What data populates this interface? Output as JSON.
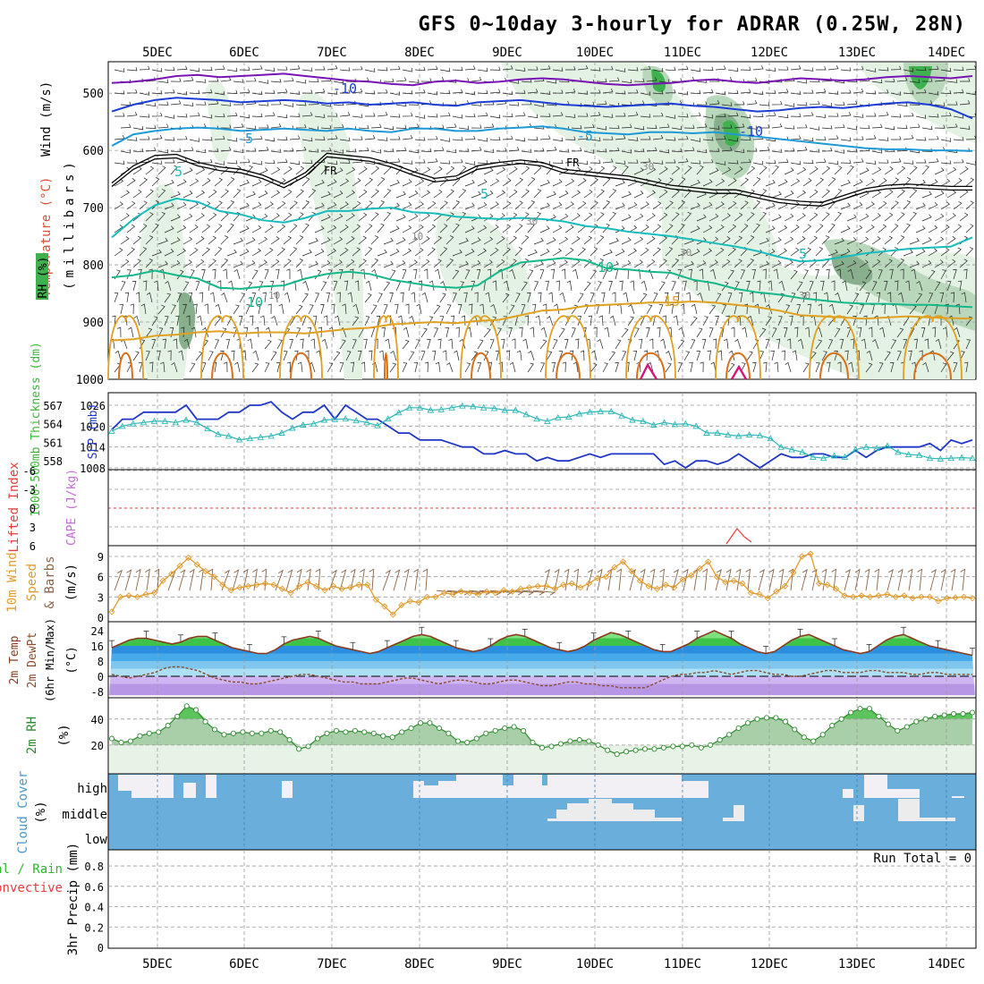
{
  "title": "GFS 0~10day 3-hourly for ADRAR (0.25W, 28N)",
  "colors": {
    "frame": "#000000",
    "grid": "#9a9a9a",
    "rh_light": "#e4f2e4",
    "rh_mid": "#b9d8bb",
    "rh_dark": "#89b08c",
    "rh_green": "#3fb24f",
    "temp_purple": "#7a13b5",
    "temp_blue": "#1c3ed6",
    "temp_sky": "#1e9ad6",
    "temp_teal": "#18bcbc",
    "temp_green": "#14b88a",
    "temp_orange": "#e0a020",
    "temp_dark_orange": "#d8701a",
    "freezing": "#000000",
    "slp": "#1f37c7",
    "thickness": "#2eb7b7",
    "wind_speed": "#e39a2c",
    "wind_barb": "#8a6246",
    "lifted_index": "#e63c3c",
    "cape": "#c26bd6",
    "temp_line": "#8b3a1e",
    "dewpoint": "#8b4a2a",
    "rh_line": "#2e8b2e",
    "cloud": "#6aaedb",
    "precip_total": "#2db82d",
    "precip_conv": "#e63c3c"
  },
  "chart_data": [
    {
      "panel": "upper-air",
      "type": "heatmap",
      "x_labels": [
        "5DEC",
        "6DEC",
        "7DEC",
        "8DEC",
        "9DEC",
        "10DEC",
        "11DEC",
        "12DEC",
        "13DEC",
        "14DEC"
      ],
      "y_ticks": [
        "500",
        "600",
        "700",
        "800",
        "900",
        "1000"
      ],
      "y_label_top": "Wind (m/s)",
      "y_label_temp": "Temperature (°C)",
      "y_label_rh": "RH (%)",
      "y_label_p": "(millibars)",
      "contour_labels": {
        "t_minus10": "-10",
        "t_minus5": "-5",
        "t_fr": "FR",
        "t_5": "5",
        "t_10": "10",
        "t_15": "15",
        "rh_30": "30",
        "rh_10": "10"
      },
      "temp_contours_mb": {
        "minus10": [
          482,
          480,
          476,
          470,
          468,
          472,
          470,
          468,
          466,
          470,
          474,
          478,
          480,
          484,
          486,
          480,
          478,
          482,
          480,
          476,
          474,
          476,
          480,
          484,
          486,
          484,
          482,
          478,
          476,
          480,
          482,
          478,
          474,
          476,
          478,
          476,
          472,
          470,
          472,
          474,
          470
        ],
        "minus5": [
          532,
          520,
          512,
          508,
          510,
          512,
          516,
          514,
          512,
          514,
          518,
          516,
          520,
          518,
          516,
          520,
          522,
          516,
          514,
          512,
          516,
          520,
          522,
          524,
          522,
          520,
          518,
          522,
          524,
          528,
          532,
          530,
          526,
          524,
          526,
          522,
          518,
          516,
          520,
          528,
          544
        ],
        "minus5b": [
          592,
          572,
          566,
          562,
          560,
          562,
          566,
          564,
          562,
          564,
          566,
          562,
          566,
          568,
          562,
          562,
          566,
          566,
          562,
          560,
          558,
          562,
          568,
          570,
          572,
          568,
          568,
          570,
          568,
          572,
          576,
          580,
          584,
          588,
          592,
          596,
          598,
          598,
          600,
          600,
          601
        ],
        "fr": [
          660,
          630,
          612,
          610,
          624,
          632,
          636,
          646,
          662,
          642,
          608,
          612,
          616,
          626,
          640,
          652,
          648,
          630,
          624,
          620,
          624,
          636,
          640,
          644,
          648,
          656,
          664,
          668,
          672,
          672,
          680,
          688,
          692,
          694,
          682,
          670,
          664,
          662,
          664,
          666,
          666
        ],
        "five": [
          752,
          720,
          696,
          684,
          690,
          706,
          712,
          722,
          726,
          718,
          706,
          706,
          702,
          700,
          708,
          710,
          716,
          718,
          720,
          718,
          720,
          724,
          732,
          736,
          742,
          746,
          750,
          756,
          762,
          768,
          776,
          786,
          794,
          792,
          786,
          780,
          776,
          772,
          770,
          768,
          752
        ],
        "ten": [
          822,
          818,
          810,
          818,
          824,
          840,
          842,
          838,
          836,
          824,
          816,
          812,
          816,
          826,
          832,
          838,
          840,
          836,
          812,
          796,
          792,
          788,
          792,
          806,
          808,
          812,
          814,
          826,
          832,
          842,
          848,
          852,
          858,
          862,
          866,
          868,
          868,
          870,
          870,
          872,
          874
        ],
        "fifteen": [
          932,
          930,
          924,
          922,
          918,
          916,
          920,
          918,
          918,
          920,
          916,
          912,
          910,
          904,
          902,
          900,
          902,
          898,
          896,
          888,
          880,
          878,
          872,
          870,
          868,
          866,
          866,
          864,
          866,
          870,
          874,
          880,
          888,
          890,
          892,
          894,
          892,
          890,
          892,
          893,
          894
        ]
      }
    },
    {
      "panel": "slp-thickness",
      "type": "line",
      "y_label_left": "1000-500mb Thickness (dm)",
      "y_label_right": "SLP (mb)",
      "left_ticks": [
        "567",
        "564",
        "561",
        "558"
      ],
      "right_ticks": [
        "1026",
        "1020",
        "1014",
        "1008"
      ],
      "series": [
        {
          "name": "SLP",
          "values": [
            1019,
            1022,
            1022,
            1024,
            1024,
            1024,
            1024,
            1026,
            1022,
            1022,
            1022,
            1024,
            1024,
            1026,
            1026,
            1027,
            1024,
            1022,
            1024,
            1024,
            1026,
            1022,
            1026,
            1024,
            1022,
            1022,
            1020,
            1018,
            1018,
            1016,
            1016,
            1016,
            1015,
            1014,
            1014,
            1012,
            1012,
            1013,
            1012,
            1012,
            1010,
            1011,
            1010,
            1010,
            1011,
            1012,
            1011,
            1012,
            1012,
            1012,
            1012,
            1012,
            1009,
            1010,
            1008,
            1010,
            1010,
            1009,
            1010,
            1012,
            1010,
            1008,
            1010,
            1012,
            1011,
            1011,
            1012,
            1012,
            1011,
            1011,
            1013,
            1011,
            1013,
            1014,
            1014,
            1014,
            1014,
            1015,
            1013,
            1016,
            1015,
            1016
          ]
        },
        {
          "name": "Thickness",
          "values": [
            562.8,
            563.6,
            564.0,
            564.2,
            564.4,
            564.4,
            564.2,
            564.6,
            564.2,
            563.2,
            562.3,
            562.0,
            561.4,
            561.6,
            561.8,
            562.0,
            562.5,
            563.3,
            563.8,
            564.0,
            564.6,
            564.7,
            564.8,
            564.5,
            564.2,
            563.7,
            564.8,
            565.8,
            566.6,
            566.6,
            566.2,
            566.3,
            566.6,
            566.9,
            566.8,
            566.6,
            566.5,
            566.2,
            566.2,
            565.5,
            564.8,
            564.4,
            565.0,
            565.1,
            565.6,
            565.9,
            566.0,
            566.0,
            565.3,
            564.6,
            564.4,
            563.8,
            564.2,
            563.9,
            564.0,
            563.6,
            562.5,
            562.5,
            562.2,
            562.0,
            562.2,
            562.1,
            561.6,
            560.2,
            559.8,
            559.4,
            558.6,
            558.4,
            558.8,
            558.6,
            559.8,
            560.2,
            560.0,
            560.4,
            559.4,
            559.0,
            558.9,
            558.4,
            558.3,
            558.4,
            558.5,
            558.4
          ]
        }
      ]
    },
    {
      "panel": "lifted-index",
      "type": "line",
      "y_label_left": "Lifted Index",
      "y_label_right": "CAPE (J/kg)",
      "left_ticks": [
        "-6",
        "-3",
        "0",
        "3",
        "6"
      ]
    },
    {
      "panel": "wind-10m",
      "type": "line",
      "y_label_left": "10m Wind",
      "y_label_mid1": "Speed",
      "y_label_mid2": "& Barbs",
      "y_label_right": "(m/s)",
      "left_ticks": [
        "9",
        "6",
        "3",
        "0"
      ],
      "series": [
        {
          "name": "Speed",
          "values": [
            0.8,
            3.0,
            3.2,
            3.0,
            3.4,
            3.6,
            5.4,
            6.4,
            7.6,
            8.8,
            7.8,
            6.8,
            6.0,
            4.8,
            4.0,
            4.4,
            4.6,
            4.8,
            5.0,
            4.8,
            4.2,
            3.6,
            4.6,
            5.2,
            4.6,
            4.0,
            4.6,
            4.2,
            4.4,
            4.8,
            4.8,
            2.6,
            1.6,
            0.4,
            1.8,
            2.4,
            2.2,
            3.0,
            3.0,
            3.6,
            3.4,
            3.8,
            3.6,
            3.4,
            3.8,
            3.6,
            4.0,
            3.8,
            4.2,
            4.4,
            4.6,
            4.6,
            4.2,
            4.8,
            5.0,
            4.4,
            5.0,
            5.8,
            6.0,
            7.4,
            8.2,
            6.8,
            5.4,
            4.6,
            4.2,
            4.8,
            4.4,
            5.6,
            6.2,
            7.2,
            8.2,
            6.0,
            5.2,
            5.4,
            5.0,
            3.6,
            3.4,
            2.8,
            3.8,
            4.6,
            6.6,
            9.0,
            9.4,
            5.0,
            4.8,
            4.2,
            3.2,
            3.0,
            3.2,
            3.0,
            3.2,
            3.4,
            3.0,
            3.2,
            2.8,
            3.0,
            3.0,
            2.4,
            2.8,
            2.9,
            3.0,
            2.8
          ]
        }
      ]
    },
    {
      "panel": "temperature-2m",
      "type": "area",
      "y_label_left1": "2m Temp",
      "y_label_left2": "2m DewPt",
      "y_label_left3": "(6hr Min/Max)",
      "y_label_right": "(°C)",
      "left_ticks": [
        "24",
        "16",
        "8",
        "0",
        "-8"
      ],
      "series": [
        {
          "name": "Temp",
          "values": [
            15,
            17,
            19,
            20,
            20,
            19,
            18,
            17,
            18,
            20,
            21,
            21,
            19,
            17,
            15,
            14,
            13,
            12,
            12,
            14,
            17,
            19,
            20,
            21,
            20,
            18,
            16,
            15,
            14,
            13,
            12,
            13,
            15,
            17,
            19,
            21,
            22,
            21,
            19,
            17,
            15,
            14,
            13,
            14,
            16,
            19,
            21,
            22,
            21,
            19,
            17,
            15,
            14,
            13,
            14,
            16,
            19,
            21,
            23,
            22,
            20,
            18,
            16,
            14,
            13,
            13,
            15,
            17,
            20,
            22,
            24,
            22,
            20,
            17,
            15,
            13,
            12,
            13,
            16,
            19,
            21,
            22,
            20,
            18,
            16,
            14,
            13,
            12,
            13,
            16,
            19,
            21,
            22,
            20,
            18,
            16,
            15,
            14,
            13,
            12,
            11
          ]
        },
        {
          "name": "DewPt",
          "values": [
            1,
            0,
            -1,
            0,
            1,
            2,
            4,
            5,
            5,
            4,
            3,
            1,
            -1,
            -2,
            -3,
            -3,
            -4,
            -4,
            -3,
            -2,
            -1,
            0,
            1,
            1,
            0,
            -1,
            -2,
            -3,
            -3,
            -4,
            -4,
            -4,
            -3,
            -2,
            -1,
            -1,
            -2,
            -3,
            -4,
            -3,
            -2,
            -2,
            -3,
            -4,
            -4,
            -3,
            -2,
            -2,
            -3,
            -4,
            -5,
            -5,
            -4,
            -3,
            -3,
            -4,
            -4,
            -5,
            -5,
            -6,
            -6,
            -6,
            -6,
            -4,
            -2,
            0,
            1,
            1,
            2,
            2,
            3,
            2,
            1,
            2,
            3,
            3,
            2,
            1,
            1,
            0,
            0,
            1,
            2,
            3,
            3,
            2,
            2,
            2,
            3,
            3,
            2,
            2,
            2,
            1,
            1,
            2,
            2,
            1,
            1,
            1,
            1
          ]
        }
      ]
    },
    {
      "panel": "rh-2m",
      "type": "area",
      "y_label_left": "2m RH",
      "y_label_right": "(%)",
      "left_ticks": [
        "40",
        "20"
      ],
      "series": [
        {
          "name": "RH",
          "values": [
            25,
            22,
            23,
            27,
            29,
            30,
            35,
            42,
            50,
            47,
            38,
            32,
            28,
            29,
            30,
            29,
            29,
            31,
            30,
            24,
            17,
            19,
            25,
            29,
            31,
            30,
            31,
            30,
            29,
            27,
            26,
            30,
            33,
            37,
            37,
            33,
            29,
            23,
            22,
            25,
            29,
            31,
            33,
            34,
            31,
            22,
            18,
            19,
            21,
            23,
            24,
            23,
            20,
            16,
            13,
            15,
            16,
            17,
            17,
            18,
            19,
            19,
            20,
            18,
            20,
            24,
            28,
            33,
            37,
            40,
            41,
            41,
            38,
            32,
            26,
            23,
            28,
            35,
            40,
            45,
            48,
            48,
            42,
            36,
            31,
            34,
            38,
            40,
            42,
            43,
            44,
            44,
            45
          ]
        }
      ]
    },
    {
      "panel": "cloud-cover",
      "type": "heatmap",
      "y_label_left": "Cloud Cover",
      "y_label_right": "(%)",
      "row_labels": [
        "high",
        "middle",
        "low"
      ]
    },
    {
      "panel": "precip",
      "type": "bar",
      "y_label_left1": "Total / Rain",
      "y_label_left2": "Convective",
      "y_label_right": "3hr Precip (mm)",
      "left_ticks": [
        "0.8",
        "0.6",
        "0.4",
        "0.2",
        "0"
      ],
      "run_total": "Run Total = 0"
    }
  ]
}
